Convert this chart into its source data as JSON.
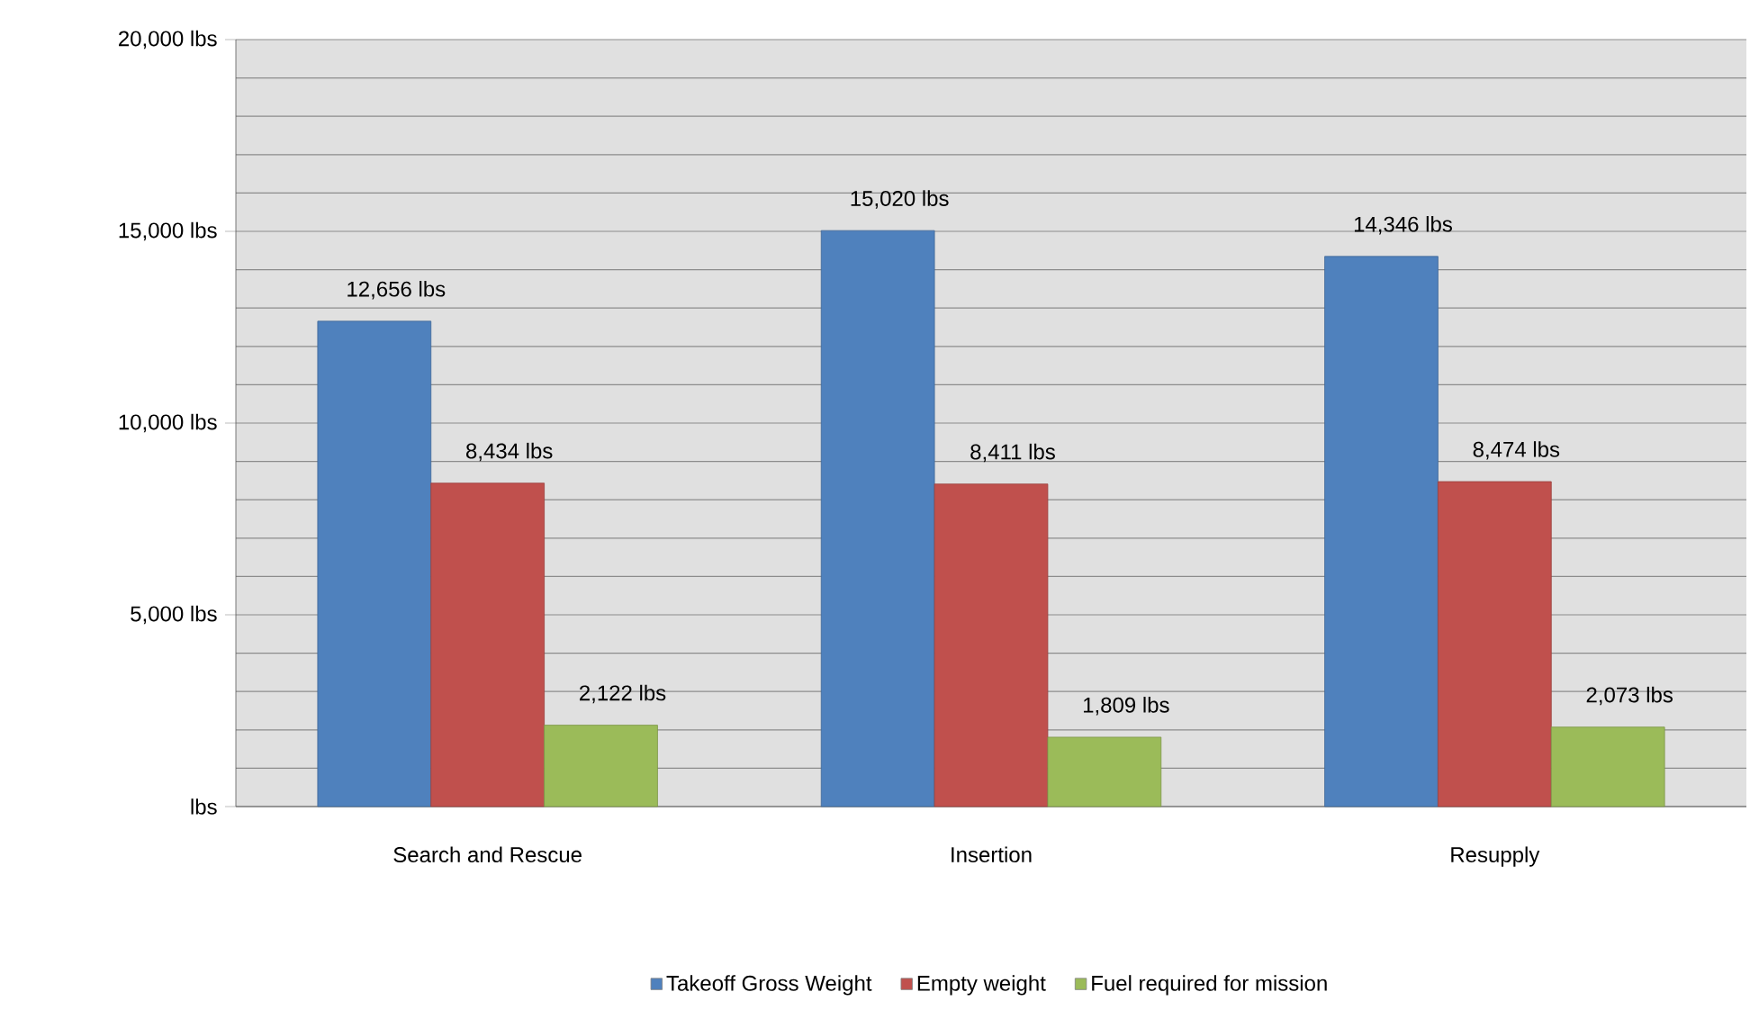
{
  "chart_data": {
    "type": "bar",
    "categories": [
      "Search and Rescue",
      "Insertion",
      "Resupply"
    ],
    "series": [
      {
        "name": "Takeoff Gross Weight",
        "color": "#4f81bd",
        "values": [
          12656,
          15020,
          14346
        ],
        "value_labels": [
          "12,656 lbs",
          "15,020 lbs",
          "14,346 lbs"
        ]
      },
      {
        "name": "Empty weight",
        "color": "#c0504d",
        "values": [
          8434,
          8411,
          8474
        ],
        "value_labels": [
          "8,434 lbs",
          "8,411 lbs",
          "8,474 lbs"
        ]
      },
      {
        "name": "Fuel required for mission",
        "color": "#9bbb59",
        "values": [
          2122,
          1809,
          2073
        ],
        "value_labels": [
          "2,122 lbs",
          "1,809 lbs",
          "2,073 lbs"
        ]
      }
    ],
    "ylim": [
      0,
      20000
    ],
    "yticks": [
      {
        "value": 0,
        "label": "lbs"
      },
      {
        "value": 5000,
        "label": "5,000 lbs"
      },
      {
        "value": 10000,
        "label": "10,000 lbs"
      },
      {
        "value": 15000,
        "label": "15,000 lbs"
      },
      {
        "value": 20000,
        "label": "20,000 lbs"
      }
    ],
    "grid": "y",
    "legend": "bottom"
  }
}
